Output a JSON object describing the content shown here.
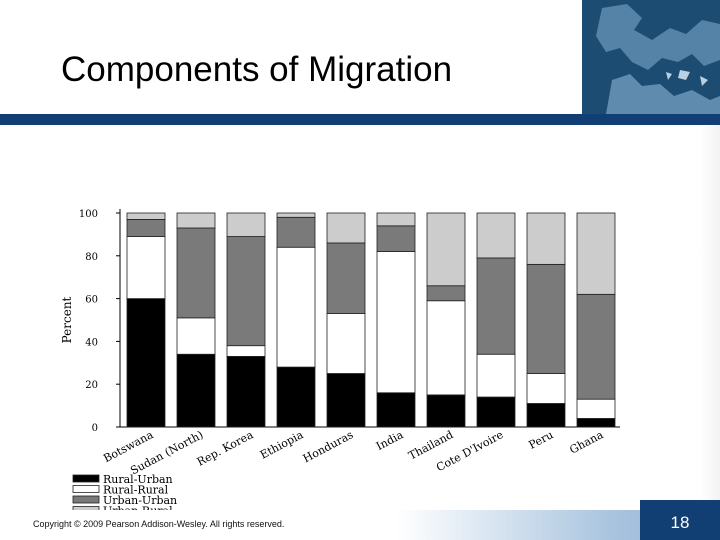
{
  "slide": {
    "title": "Components of Migration",
    "copyright": "Copyright © 2009 Pearson Addison-Wesley. All rights reserved.",
    "page_number": "18"
  },
  "colors": {
    "header_bar": "#123f73",
    "rural_urban": "#000000",
    "rural_rural": "#ffffff",
    "urban_urban": "#7a7a7a",
    "urban_rural": "#cccccc"
  },
  "chart_data": {
    "type": "bar",
    "stacked": true,
    "ylabel": "Percent",
    "xlabel": "",
    "ylim": [
      0,
      100
    ],
    "yticks": [
      "0",
      "20",
      "40",
      "60",
      "80",
      "100"
    ],
    "grid": false,
    "legend_position": "bottom-left",
    "categories": [
      "Botswana",
      "Sudan (North)",
      "Rep. Korea",
      "Ethiopia",
      "Honduras",
      "India",
      "Thailand",
      "Cote D'Ivoire",
      "Peru",
      "Ghana"
    ],
    "series": [
      {
        "name": "Rural-Urban",
        "color": "#000000",
        "values": [
          60,
          34,
          33,
          28,
          25,
          16,
          15,
          14,
          11,
          4
        ]
      },
      {
        "name": "Rural-Rural",
        "color": "#ffffff",
        "values": [
          29,
          17,
          5,
          56,
          28,
          66,
          44,
          20,
          14,
          9
        ]
      },
      {
        "name": "Urban-Urban",
        "color": "#7a7a7a",
        "values": [
          8,
          42,
          51,
          14,
          33,
          12,
          7,
          45,
          51,
          49
        ]
      },
      {
        "name": "Urban-Rural",
        "color": "#cccccc",
        "values": [
          3,
          7,
          11,
          2,
          14,
          6,
          34,
          21,
          24,
          38
        ]
      }
    ]
  }
}
